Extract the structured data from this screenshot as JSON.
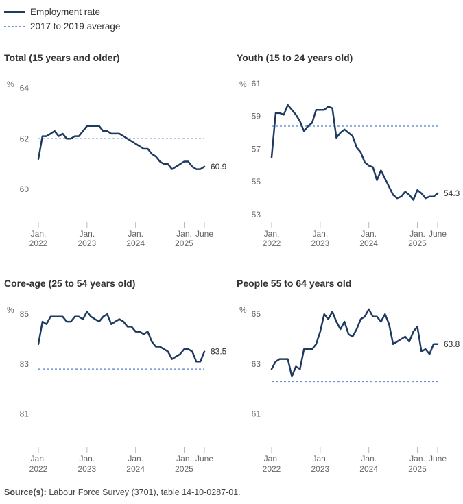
{
  "legend": {
    "employment_label": "Employment rate",
    "average_label": "2017 to 2019 average"
  },
  "source": {
    "label": "Source(s):",
    "text": "Labour Force Survey (3701), table 14-10-0287-01."
  },
  "colors": {
    "line": "#1f3a5f",
    "average": "#6f95d2",
    "tick": "#bbbbbb"
  },
  "chart_data": [
    {
      "type": "line",
      "title": "Total (15 years and older)",
      "ylabel": "%",
      "ylim": [
        59,
        64.5
      ],
      "yticks": [
        60,
        62,
        64
      ],
      "xticks": [
        {
          "line1": "Jan.",
          "line2": "2022",
          "x": 0
        },
        {
          "line1": "Jan.",
          "line2": "2023",
          "x": 12
        },
        {
          "line1": "Jan.",
          "line2": "2024",
          "x": 24
        },
        {
          "line1": "Jan.",
          "line2": "2025",
          "x": 36
        },
        {
          "line1": "June",
          "line2": "",
          "x": 41
        }
      ],
      "x_range": [
        0,
        41
      ],
      "series": [
        {
          "name": "Employment rate",
          "values": [
            61.2,
            62.1,
            62.1,
            62.2,
            62.3,
            62.1,
            62.2,
            62.0,
            62.0,
            62.1,
            62.1,
            62.3,
            62.5,
            62.5,
            62.5,
            62.5,
            62.3,
            62.3,
            62.2,
            62.2,
            62.2,
            62.1,
            62.0,
            61.9,
            61.8,
            61.7,
            61.6,
            61.6,
            61.4,
            61.3,
            61.1,
            61.0,
            61.0,
            60.8,
            60.9,
            61.0,
            61.1,
            61.1,
            60.9,
            60.8,
            60.8,
            60.9
          ]
        }
      ],
      "average": 62.0,
      "end_label": "60.9"
    },
    {
      "type": "line",
      "title": "Youth (15 to 24 years old)",
      "ylabel": "%",
      "ylim": [
        53,
        61.5
      ],
      "yticks": [
        53,
        55,
        57,
        59,
        61
      ],
      "xticks": [
        {
          "line1": "Jan.",
          "line2": "2022",
          "x": 0
        },
        {
          "line1": "Jan.",
          "line2": "2023",
          "x": 12
        },
        {
          "line1": "Jan.",
          "line2": "2024",
          "x": 24
        },
        {
          "line1": "Jan.",
          "line2": "2025",
          "x": 36
        },
        {
          "line1": "June",
          "line2": "",
          "x": 41
        }
      ],
      "x_range": [
        0,
        41
      ],
      "series": [
        {
          "name": "Employment rate",
          "values": [
            56.5,
            59.2,
            59.2,
            59.1,
            59.7,
            59.4,
            59.1,
            58.7,
            58.1,
            58.4,
            58.6,
            59.4,
            59.4,
            59.4,
            59.6,
            59.5,
            57.7,
            58.0,
            58.2,
            58.0,
            57.8,
            57.1,
            56.8,
            56.2,
            56.0,
            55.9,
            55.1,
            55.7,
            55.2,
            54.7,
            54.2,
            54.0,
            54.1,
            54.4,
            54.2,
            53.9,
            54.5,
            54.3,
            54.0,
            54.1,
            54.1,
            54.3
          ]
        }
      ],
      "average": 58.4,
      "end_label": "54.3"
    },
    {
      "type": "line",
      "title": "Core-age (25 to 54 years old)",
      "ylabel": "%",
      "ylim": [
        80,
        85.5
      ],
      "yticks": [
        81,
        83,
        85
      ],
      "xticks": [
        {
          "line1": "Jan.",
          "line2": "2022",
          "x": 0
        },
        {
          "line1": "Jan.",
          "line2": "2023",
          "x": 12
        },
        {
          "line1": "Jan.",
          "line2": "2024",
          "x": 24
        },
        {
          "line1": "Jan.",
          "line2": "2025",
          "x": 36
        },
        {
          "line1": "June",
          "line2": "",
          "x": 41
        }
      ],
      "x_range": [
        0,
        41
      ],
      "series": [
        {
          "name": "Employment rate",
          "values": [
            83.8,
            84.7,
            84.6,
            84.9,
            84.9,
            84.9,
            84.9,
            84.7,
            84.7,
            84.9,
            84.9,
            84.8,
            85.1,
            84.9,
            84.8,
            84.7,
            84.9,
            85.0,
            84.6,
            84.7,
            84.8,
            84.7,
            84.5,
            84.5,
            84.3,
            84.3,
            84.2,
            84.3,
            83.9,
            83.7,
            83.7,
            83.6,
            83.5,
            83.2,
            83.3,
            83.4,
            83.6,
            83.6,
            83.5,
            83.1,
            83.1,
            83.5
          ]
        }
      ],
      "average": 82.8,
      "end_label": "83.5"
    },
    {
      "type": "line",
      "title": "People 55 to 64 years old",
      "ylabel": "%",
      "ylim": [
        60,
        65.5
      ],
      "yticks": [
        61,
        63,
        65
      ],
      "xticks": [
        {
          "line1": "Jan.",
          "line2": "2022",
          "x": 0
        },
        {
          "line1": "Jan.",
          "line2": "2023",
          "x": 12
        },
        {
          "line1": "Jan.",
          "line2": "2024",
          "x": 24
        },
        {
          "line1": "Jan.",
          "line2": "2025",
          "x": 36
        },
        {
          "line1": "June",
          "line2": "",
          "x": 41
        }
      ],
      "x_range": [
        0,
        41
      ],
      "series": [
        {
          "name": "Employment rate",
          "values": [
            62.8,
            63.1,
            63.2,
            63.2,
            63.2,
            62.5,
            62.9,
            62.8,
            63.6,
            63.6,
            63.6,
            63.8,
            64.3,
            65.0,
            64.8,
            65.1,
            64.7,
            64.4,
            64.7,
            64.2,
            64.1,
            64.4,
            64.8,
            64.9,
            65.2,
            64.9,
            64.9,
            64.7,
            65.0,
            64.6,
            63.8,
            63.9,
            64.0,
            64.1,
            63.9,
            64.3,
            64.5,
            63.5,
            63.6,
            63.4,
            63.8,
            63.8
          ]
        }
      ],
      "average": 62.3,
      "end_label": "63.8"
    }
  ]
}
